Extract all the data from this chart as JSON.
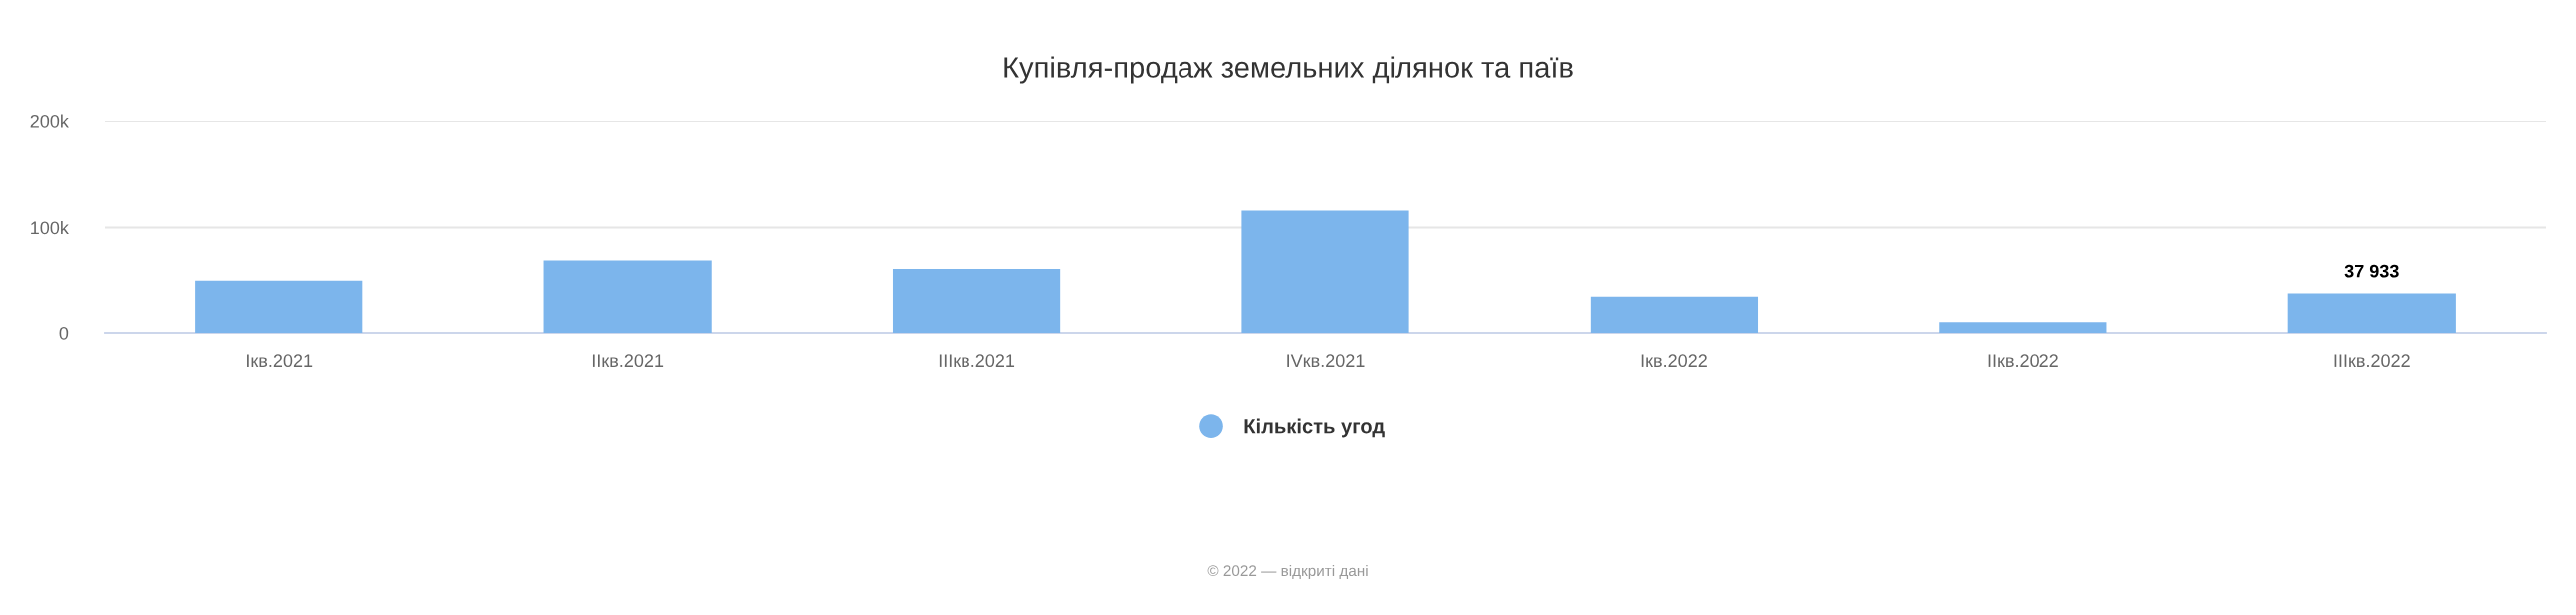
{
  "chart_data": {
    "type": "bar",
    "title": "Купівля-продаж земельних ділянок та паїв",
    "categories": [
      "Iкв.2021",
      "IIкв.2021",
      "IIIкв.2021",
      "IVкв.2021",
      "Iкв.2022",
      "IIкв.2022",
      "IIIкв.2022"
    ],
    "series": [
      {
        "name": "Кількість угод",
        "color": "#7cb5ec",
        "values": [
          50000,
          69000,
          61000,
          116000,
          35000,
          10000,
          37933
        ],
        "value_labels": [
          null,
          null,
          null,
          null,
          null,
          null,
          "37 933"
        ]
      }
    ],
    "ylim": [
      0,
      200000
    ],
    "yticks": [
      0,
      {
        "value": 100000,
        "label": "100k"
      },
      {
        "value": 200000,
        "label": "200k"
      }
    ],
    "grid": "y",
    "legend": "bottom",
    "annotations": [
      "© 2022 — відкриті дані"
    ]
  }
}
